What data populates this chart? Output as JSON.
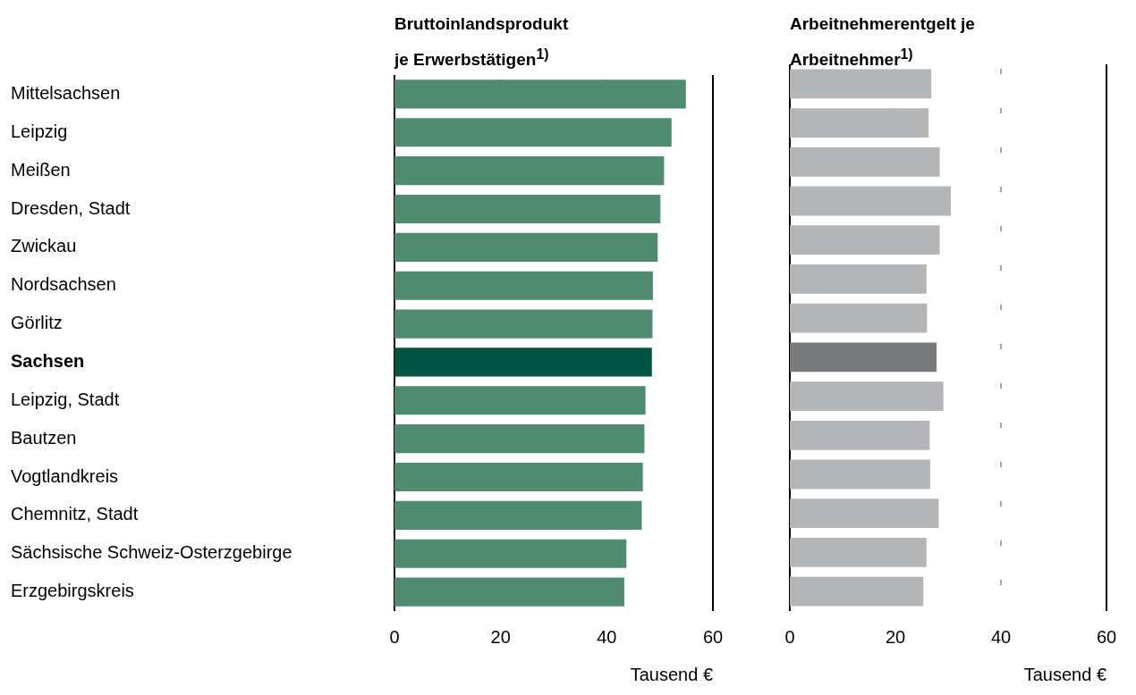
{
  "chart_data": [
    {
      "type": "bar",
      "orientation": "horizontal",
      "title": "Bruttoinlandsprodukt je Erwerbstätigen$^{1)}$",
      "xlabel": "Tausend €",
      "categories": [
        "Mittelsachsen",
        "Leipzig",
        "Meißen",
        "Dresden, Stadt",
        "Zwickau",
        "Nordsachsen",
        "Görlitz",
        "Sachsen",
        "Leipzig, Stadt",
        "Bautzen",
        "Vogtlandkreis",
        "Chemnitz, Stadt",
        "Sächsische Schweiz-Osterzgebirge",
        "Erzgebirgskreis"
      ],
      "values": [
        54.9,
        52.2,
        50.8,
        50.1,
        49.6,
        48.7,
        48.6,
        48.5,
        47.3,
        47.1,
        46.8,
        46.6,
        43.7,
        43.3
      ],
      "colors": [
        "#4f8b6e",
        "#4f8b6e",
        "#4f8b6e",
        "#4f8b6e",
        "#4f8b6e",
        "#4f8b6e",
        "#4f8b6e",
        "#005442",
        "#4f8b6e",
        "#4f8b6e",
        "#4f8b6e",
        "#4f8b6e",
        "#4f8b6e",
        "#4f8b6e"
      ],
      "xlim": [
        0,
        60
      ],
      "xticks": [
        0,
        20,
        40,
        60
      ],
      "grid": "x"
    },
    {
      "type": "bar",
      "orientation": "horizontal",
      "title": "Arbeitnehmerentgelt je Arbeitnehmer$^{1)}$",
      "xlabel": "Tausend €",
      "categories": [
        null,
        null,
        null,
        null,
        null,
        null,
        null,
        null,
        null,
        null,
        null,
        null,
        null,
        null
      ],
      "values": [
        26.8,
        26.3,
        28.4,
        30.5,
        28.4,
        25.9,
        26.0,
        27.8,
        29.1,
        26.5,
        26.6,
        28.2,
        25.9,
        25.3
      ],
      "colors": [
        "#b4b5b7",
        "#b4b5b7",
        "#b4b5b7",
        "#b4b5b7",
        "#b4b5b7",
        "#b4b5b7",
        "#b4b5b7",
        "#78797b",
        "#b4b5b7",
        "#b4b5b7",
        "#b4b5b7",
        "#b4b5b7",
        "#b4b5b7",
        "#b4b5b7"
      ],
      "xlim": [
        0,
        60
      ],
      "xticks": [
        0,
        20,
        40,
        60
      ],
      "grid": "x",
      "tick_labels": "x"
    }
  ]
}
